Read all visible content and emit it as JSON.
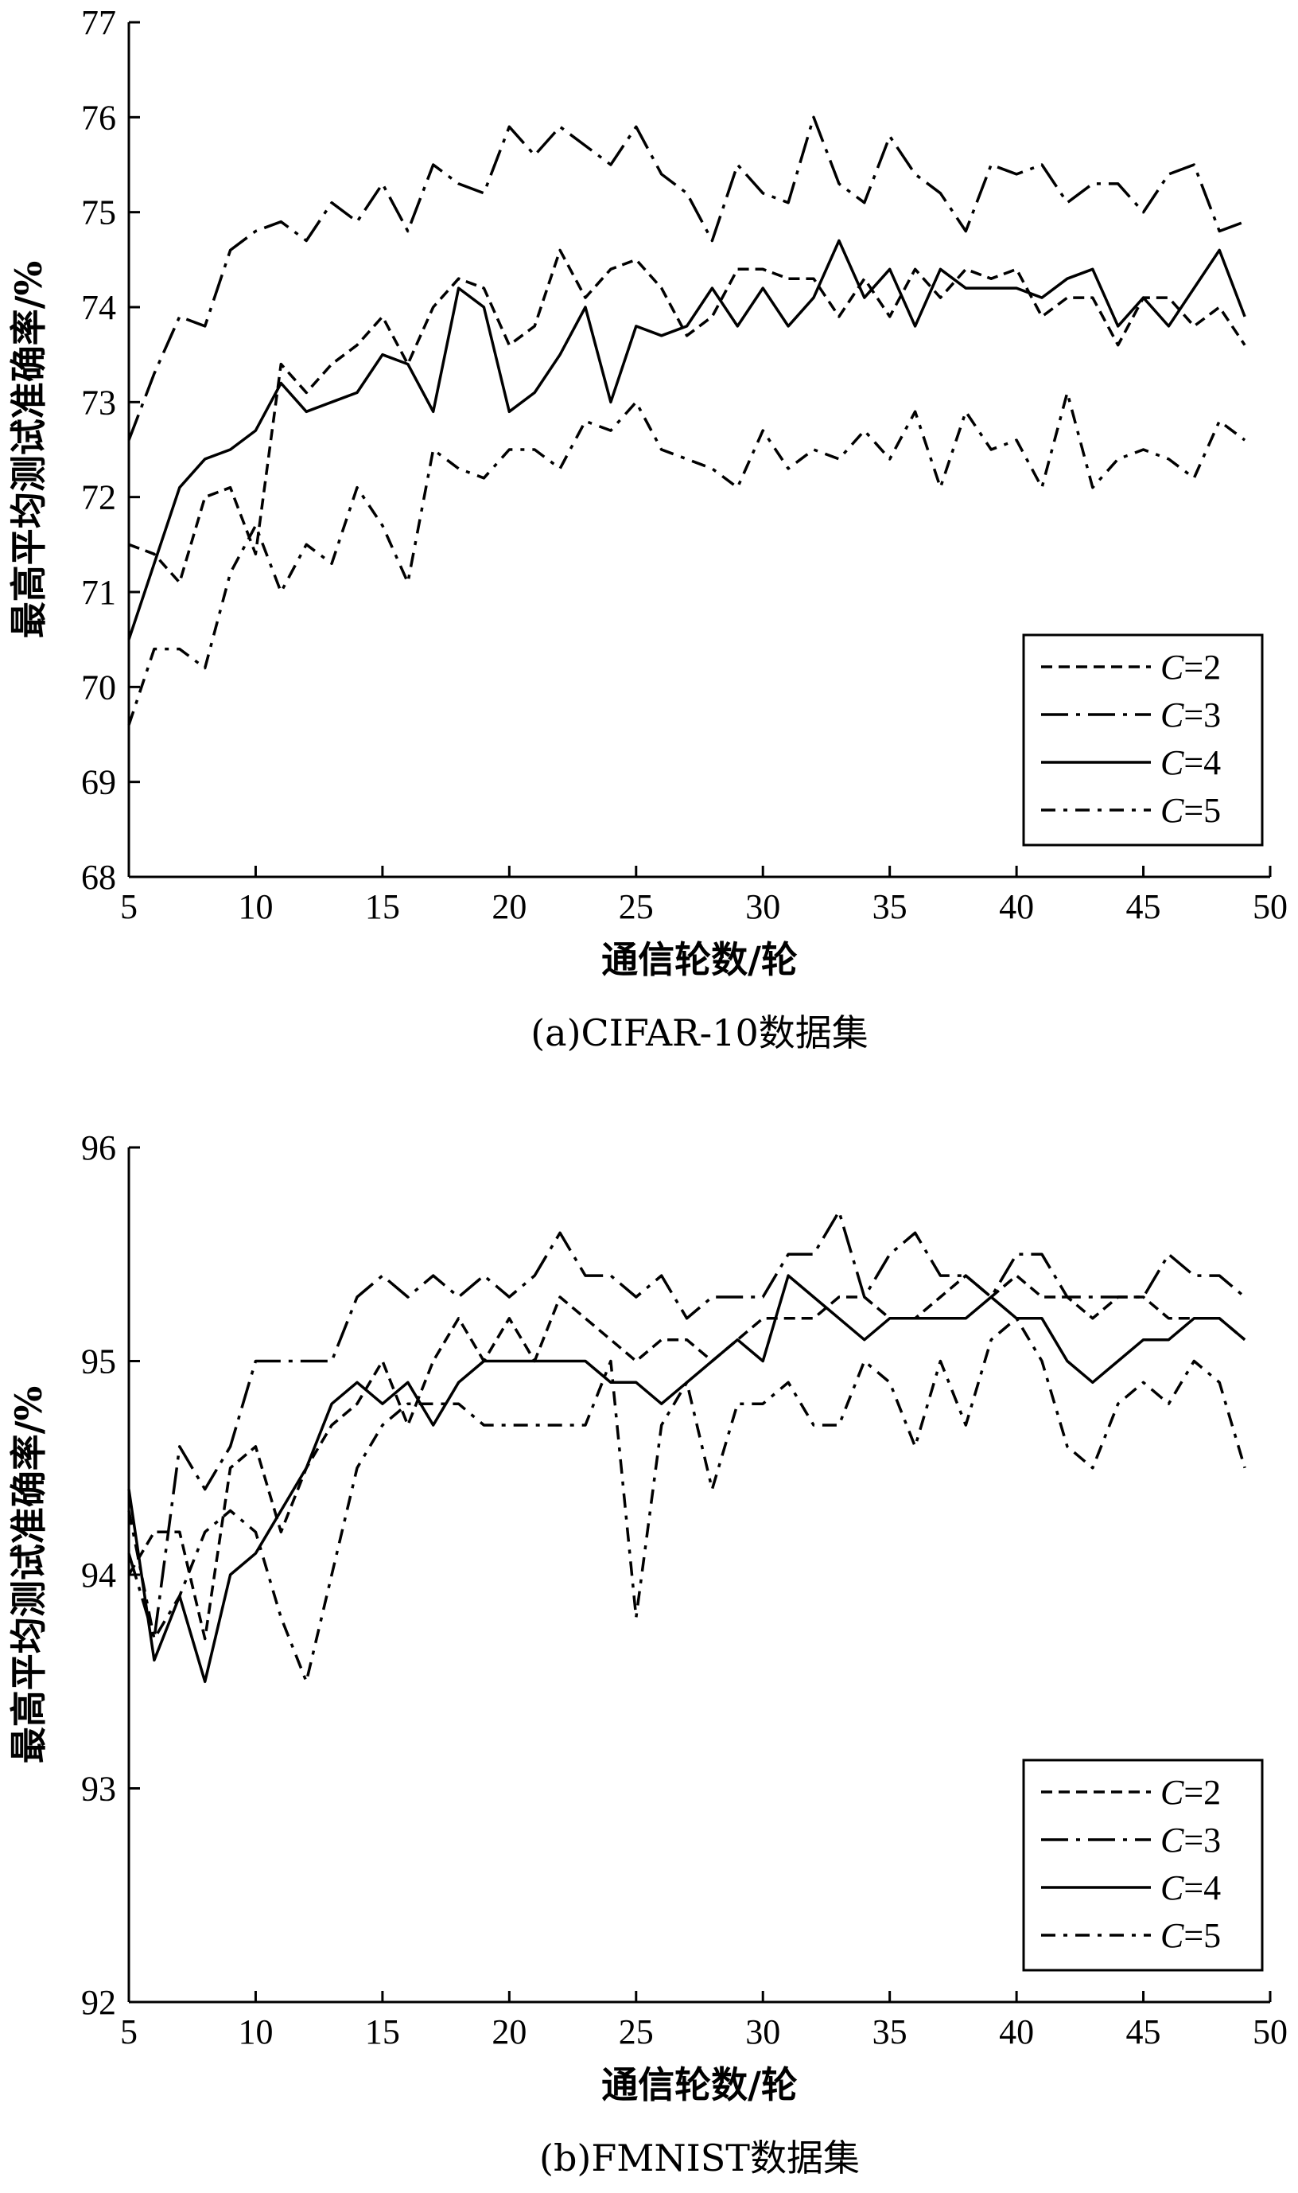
{
  "chart_data": [
    {
      "type": "line",
      "caption": "(a)CIFAR-10数据集",
      "xlabel": "通信轮数/轮",
      "ylabel": "最高平均测试准确率/%",
      "xlim": [
        5,
        50
      ],
      "ylim": [
        68,
        77
      ],
      "xticks": [
        5,
        10,
        15,
        20,
        25,
        30,
        35,
        40,
        45,
        50
      ],
      "yticks": [
        68,
        69,
        70,
        71,
        72,
        73,
        74,
        75,
        76,
        77
      ],
      "legend_position": "bottom-right",
      "x": [
        5,
        6,
        7,
        8,
        9,
        10,
        11,
        12,
        13,
        14,
        15,
        16,
        17,
        18,
        19,
        20,
        21,
        22,
        23,
        24,
        25,
        26,
        27,
        28,
        29,
        30,
        31,
        32,
        33,
        34,
        35,
        36,
        37,
        38,
        39,
        40,
        41,
        42,
        43,
        44,
        45,
        46,
        47,
        48,
        49
      ],
      "series": [
        {
          "name": "C=2",
          "dash": "dashed",
          "values": [
            71.5,
            71.4,
            71.1,
            72.0,
            72.1,
            71.4,
            73.4,
            73.1,
            73.4,
            73.6,
            73.9,
            73.4,
            74.0,
            74.3,
            74.2,
            73.6,
            73.8,
            74.6,
            74.1,
            74.4,
            74.5,
            74.2,
            73.7,
            73.9,
            74.4,
            74.4,
            74.3,
            74.3,
            73.9,
            74.3,
            73.9,
            74.4,
            74.1,
            74.4,
            74.3,
            74.4,
            73.9,
            74.1,
            74.1,
            73.6,
            74.1,
            74.1,
            73.8,
            74.0,
            73.6
          ]
        },
        {
          "name": "C=3",
          "dash": "long-dash-dot",
          "values": [
            72.6,
            73.3,
            73.9,
            73.8,
            74.6,
            74.8,
            74.9,
            74.7,
            75.1,
            74.9,
            75.3,
            74.8,
            75.5,
            75.3,
            75.2,
            75.9,
            75.6,
            75.9,
            75.7,
            75.5,
            75.9,
            75.4,
            75.2,
            74.7,
            75.5,
            75.2,
            75.1,
            76.0,
            75.3,
            75.1,
            75.8,
            75.4,
            75.2,
            74.8,
            75.5,
            75.4,
            75.5,
            75.1,
            75.3,
            75.3,
            75.0,
            75.4,
            75.5,
            74.8,
            74.9
          ]
        },
        {
          "name": "C=4",
          "dash": "solid",
          "values": [
            70.5,
            71.3,
            72.1,
            72.4,
            72.5,
            72.7,
            73.2,
            72.9,
            73.0,
            73.1,
            73.5,
            73.4,
            72.9,
            74.2,
            74.0,
            72.9,
            73.1,
            73.5,
            74.0,
            73.0,
            73.8,
            73.7,
            73.8,
            74.2,
            73.8,
            74.2,
            73.8,
            74.1,
            74.7,
            74.1,
            74.4,
            73.8,
            74.4,
            74.2,
            74.2,
            74.2,
            74.1,
            74.3,
            74.4,
            73.8,
            74.1,
            73.8,
            74.2,
            74.6,
            73.9
          ]
        },
        {
          "name": "C=5",
          "dash": "dash-dot",
          "values": [
            69.6,
            70.4,
            70.4,
            70.2,
            71.2,
            71.7,
            71.0,
            71.5,
            71.3,
            72.1,
            71.7,
            71.1,
            72.5,
            72.3,
            72.2,
            72.5,
            72.5,
            72.3,
            72.8,
            72.7,
            73.0,
            72.5,
            72.4,
            72.3,
            72.1,
            72.7,
            72.3,
            72.5,
            72.4,
            72.7,
            72.4,
            72.9,
            72.1,
            72.9,
            72.5,
            72.6,
            72.1,
            73.1,
            72.1,
            72.4,
            72.5,
            72.4,
            72.2,
            72.8,
            72.6
          ]
        }
      ]
    },
    {
      "type": "line",
      "caption": "(b)FMNIST数据集",
      "xlabel": "通信轮数/轮",
      "ylabel": "最高平均测试准确率/%",
      "xlim": [
        5,
        50
      ],
      "ylim": [
        92,
        96
      ],
      "xticks": [
        5,
        10,
        15,
        20,
        25,
        30,
        35,
        40,
        45,
        50
      ],
      "yticks": [
        92,
        93,
        94,
        95,
        96
      ],
      "legend_position": "bottom-right",
      "x": [
        5,
        6,
        7,
        8,
        9,
        10,
        11,
        12,
        13,
        14,
        15,
        16,
        17,
        18,
        19,
        20,
        21,
        22,
        23,
        24,
        25,
        26,
        27,
        28,
        29,
        30,
        31,
        32,
        33,
        34,
        35,
        36,
        37,
        38,
        39,
        40,
        41,
        42,
        43,
        44,
        45,
        46,
        47,
        48,
        49
      ],
      "series": [
        {
          "name": "C=2",
          "dash": "dashed",
          "values": [
            94.0,
            94.2,
            94.2,
            93.7,
            94.5,
            94.6,
            94.2,
            94.5,
            94.7,
            94.8,
            95.0,
            94.7,
            95.0,
            95.2,
            95.0,
            95.2,
            95.0,
            95.3,
            95.2,
            95.1,
            95.0,
            95.1,
            95.1,
            95.0,
            95.1,
            95.2,
            95.2,
            95.2,
            95.3,
            95.3,
            95.2,
            95.2,
            95.3,
            95.4,
            95.3,
            95.4,
            95.3,
            95.3,
            95.2,
            95.3,
            95.3,
            95.2,
            95.2,
            95.2,
            95.1
          ]
        },
        {
          "name": "C=3",
          "dash": "long-dash-dot",
          "values": [
            94.1,
            93.7,
            94.6,
            94.4,
            94.6,
            95.0,
            95.0,
            95.0,
            95.0,
            95.3,
            95.4,
            95.3,
            95.4,
            95.3,
            95.4,
            95.3,
            95.4,
            95.6,
            95.4,
            95.4,
            95.3,
            95.4,
            95.2,
            95.3,
            95.3,
            95.3,
            95.5,
            95.5,
            95.7,
            95.3,
            95.5,
            95.6,
            95.4,
            95.4,
            95.3,
            95.5,
            95.5,
            95.3,
            95.3,
            95.3,
            95.3,
            95.5,
            95.4,
            95.4,
            95.3
          ]
        },
        {
          "name": "C=4",
          "dash": "solid",
          "values": [
            94.4,
            93.6,
            93.9,
            93.5,
            94.0,
            94.1,
            94.3,
            94.5,
            94.8,
            94.9,
            94.8,
            94.9,
            94.7,
            94.9,
            95.0,
            95.0,
            95.0,
            95.0,
            95.0,
            94.9,
            94.9,
            94.8,
            94.9,
            95.0,
            95.1,
            95.0,
            95.4,
            95.3,
            95.2,
            95.1,
            95.2,
            95.2,
            95.2,
            95.2,
            95.3,
            95.2,
            95.2,
            95.0,
            94.9,
            95.0,
            95.1,
            95.1,
            95.2,
            95.2,
            95.1
          ]
        },
        {
          "name": "C=5",
          "dash": "dash-dot",
          "values": [
            94.3,
            93.7,
            93.9,
            94.2,
            94.3,
            94.2,
            93.8,
            93.5,
            94.0,
            94.5,
            94.7,
            94.8,
            94.8,
            94.8,
            94.7,
            94.7,
            94.7,
            94.7,
            94.7,
            95.0,
            93.8,
            94.7,
            94.9,
            94.4,
            94.8,
            94.8,
            94.9,
            94.7,
            94.7,
            95.0,
            94.9,
            94.6,
            95.0,
            94.7,
            95.1,
            95.2,
            95.0,
            94.6,
            94.5,
            94.8,
            94.9,
            94.8,
            95.0,
            94.9,
            94.5
          ]
        }
      ]
    }
  ]
}
